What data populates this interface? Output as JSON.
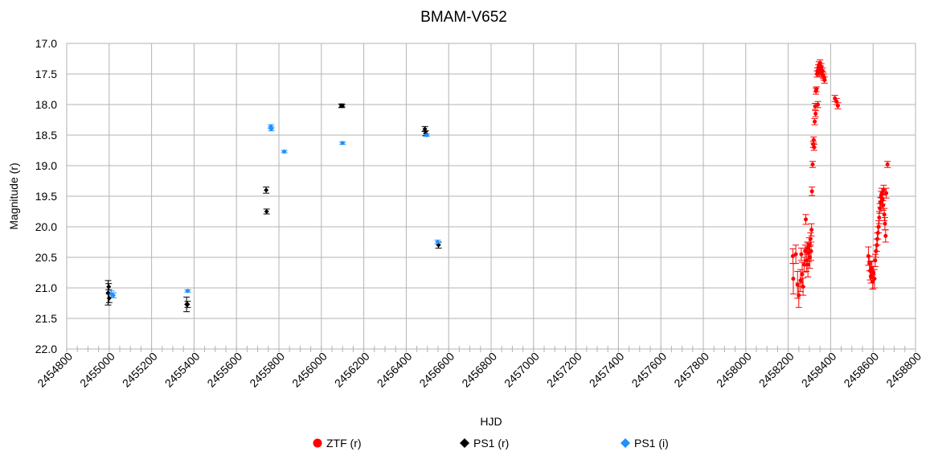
{
  "chart_data": {
    "type": "scatter",
    "title": "BMAM-V652",
    "xlabel": "HJD",
    "ylabel": "Magnitude (r)",
    "xlim": [
      2454800,
      2458800
    ],
    "ylim": [
      17.0,
      22.0
    ],
    "y_inverted": true,
    "grid": true,
    "legend_placement": "bottom",
    "x_ticks": [
      "2454800",
      "2455000",
      "2455200",
      "2455400",
      "2455600",
      "2455800",
      "2456000",
      "2456200",
      "2456400",
      "2456600",
      "2456800",
      "2457000",
      "2457200",
      "2457400",
      "2457600",
      "2457800",
      "2458000",
      "2458200",
      "2458400",
      "2458600",
      "2458800"
    ],
    "y_ticks": [
      "17.0",
      "17.5",
      "18.0",
      "18.5",
      "19.0",
      "19.5",
      "20.0",
      "20.5",
      "21.0",
      "21.5",
      "22.0"
    ],
    "series": [
      {
        "name": "ZTF (r)",
        "color": "#ff0000",
        "marker": "circle",
        "points": [
          [
            2458222,
            20.48,
            0.12
          ],
          [
            2458224,
            20.85,
            0.25
          ],
          [
            2458236,
            20.45,
            0.15
          ],
          [
            2458244,
            20.95,
            0.22
          ],
          [
            2458250,
            21.12,
            0.2
          ],
          [
            2458258,
            20.88,
            0.18
          ],
          [
            2458262,
            20.45,
            0.1
          ],
          [
            2458266,
            20.78,
            0.2
          ],
          [
            2458270,
            20.98,
            0.14
          ],
          [
            2458276,
            20.62,
            0.12
          ],
          [
            2458280,
            20.4,
            0.1
          ],
          [
            2458283,
            19.88,
            0.08
          ],
          [
            2458286,
            20.55,
            0.18
          ],
          [
            2458290,
            20.35,
            0.1
          ],
          [
            2458293,
            20.62,
            0.2
          ],
          [
            2458296,
            20.42,
            0.15
          ],
          [
            2458299,
            20.3,
            0.12
          ],
          [
            2458302,
            20.5,
            0.18
          ],
          [
            2458305,
            20.2,
            0.1
          ],
          [
            2458308,
            20.4,
            0.15
          ],
          [
            2458310,
            20.05,
            0.1
          ],
          [
            2458312,
            19.42,
            0.07
          ],
          [
            2458315,
            18.98,
            0.05
          ],
          [
            2458318,
            18.65,
            0.05
          ],
          [
            2458320,
            18.58,
            0.05
          ],
          [
            2458322,
            18.7,
            0.05
          ],
          [
            2458325,
            18.28,
            0.05
          ],
          [
            2458327,
            18.03,
            0.05
          ],
          [
            2458329,
            18.15,
            0.05
          ],
          [
            2458331,
            17.78,
            0.05
          ],
          [
            2458333,
            17.75,
            0.04
          ],
          [
            2458336,
            17.5,
            0.05
          ],
          [
            2458338,
            17.45,
            0.05
          ],
          [
            2458340,
            18.0,
            0.05
          ],
          [
            2458342,
            17.4,
            0.05
          ],
          [
            2458345,
            17.35,
            0.05
          ],
          [
            2458347,
            17.48,
            0.05
          ],
          [
            2458350,
            17.32,
            0.05
          ],
          [
            2458353,
            17.42,
            0.05
          ],
          [
            2458356,
            17.38,
            0.05
          ],
          [
            2458359,
            17.5,
            0.05
          ],
          [
            2458362,
            17.45,
            0.05
          ],
          [
            2458365,
            17.52,
            0.05
          ],
          [
            2458368,
            17.55,
            0.05
          ],
          [
            2458371,
            17.6,
            0.05
          ],
          [
            2458420,
            17.9,
            0.05
          ],
          [
            2458428,
            17.95,
            0.05
          ],
          [
            2458434,
            18.02,
            0.05
          ],
          [
            2458578,
            20.48,
            0.15
          ],
          [
            2458583,
            20.6,
            0.12
          ],
          [
            2458586,
            20.72,
            0.15
          ],
          [
            2458590,
            20.82,
            0.1
          ],
          [
            2458594,
            20.68,
            0.12
          ],
          [
            2458598,
            20.9,
            0.12
          ],
          [
            2458602,
            20.75,
            0.1
          ],
          [
            2458606,
            20.85,
            0.15
          ],
          [
            2458610,
            20.55,
            0.1
          ],
          [
            2458614,
            20.4,
            0.1
          ],
          [
            2458618,
            20.3,
            0.1
          ],
          [
            2458620,
            20.2,
            0.1
          ],
          [
            2458623,
            20.1,
            0.1
          ],
          [
            2458626,
            20.0,
            0.1
          ],
          [
            2458629,
            19.85,
            0.1
          ],
          [
            2458632,
            19.7,
            0.08
          ],
          [
            2458635,
            19.6,
            0.08
          ],
          [
            2458638,
            19.5,
            0.08
          ],
          [
            2458641,
            19.45,
            0.08
          ],
          [
            2458644,
            19.55,
            0.08
          ],
          [
            2458647,
            19.65,
            0.08
          ],
          [
            2458650,
            19.4,
            0.08
          ],
          [
            2458653,
            19.8,
            0.1
          ],
          [
            2458656,
            19.95,
            0.1
          ],
          [
            2458659,
            20.15,
            0.1
          ],
          [
            2458662,
            19.45,
            0.08
          ],
          [
            2458668,
            18.98,
            0.05
          ]
        ]
      },
      {
        "name": "PS1 (r)",
        "color": "#000000",
        "marker": "diamond",
        "points": [
          [
            2454995,
            21.08,
            0.2
          ],
          [
            2454998,
            20.98,
            0.05
          ],
          [
            2455000,
            21.17,
            0.07
          ],
          [
            2455365,
            21.27,
            0.12
          ],
          [
            2455370,
            21.27,
            0.05
          ],
          [
            2455740,
            19.4,
            0.05
          ],
          [
            2455742,
            19.75,
            0.04
          ],
          [
            2456095,
            18.02,
            0.03
          ],
          [
            2456098,
            18.02,
            0.02
          ],
          [
            2456488,
            18.4,
            0.04
          ],
          [
            2456491,
            18.47,
            0.04
          ],
          [
            2456552,
            20.3,
            0.05
          ]
        ]
      },
      {
        "name": "PS1 (i)",
        "color": "#1e90ff",
        "marker": "diamond",
        "points": [
          [
            2455010,
            21.1,
            0.05
          ],
          [
            2455020,
            21.12,
            0.04
          ],
          [
            2455370,
            21.05,
            0.02
          ],
          [
            2455762,
            18.36,
            0.03
          ],
          [
            2455764,
            18.4,
            0.03
          ],
          [
            2455825,
            18.77,
            0.02
          ],
          [
            2456100,
            18.63,
            0.02
          ],
          [
            2456495,
            18.5,
            0.02
          ],
          [
            2456548,
            20.25,
            0.03
          ]
        ]
      }
    ]
  }
}
